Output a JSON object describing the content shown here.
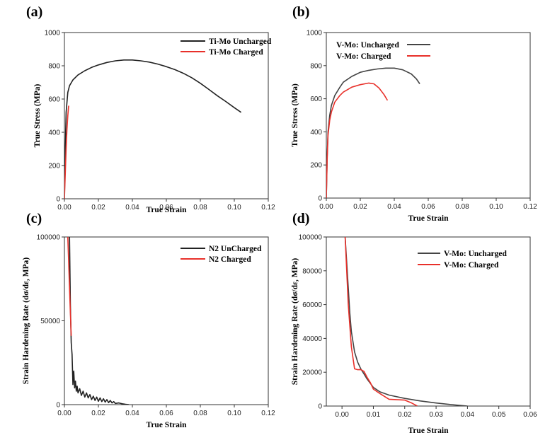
{
  "chart_data": [
    {
      "panel": "(a)",
      "type": "line",
      "xlabel": "True Strain",
      "ylabel": "True Stress (MPa)",
      "xlim": [
        0,
        0.12
      ],
      "ylim": [
        0,
        1000
      ],
      "xticks": [
        "0.00",
        "0.02",
        "0.04",
        "0.06",
        "0.08",
        "0.10",
        "0.12"
      ],
      "yticks": [
        "0",
        "200",
        "400",
        "600",
        "800",
        "1000"
      ],
      "legend_position": "top-right",
      "series": [
        {
          "name": "Ti-Mo Uncharged",
          "color": "#222222",
          "x": [
            0,
            0.0005,
            0.001,
            0.002,
            0.003,
            0.005,
            0.008,
            0.012,
            0.016,
            0.02,
            0.025,
            0.03,
            0.035,
            0.04,
            0.045,
            0.05,
            0.055,
            0.06,
            0.065,
            0.07,
            0.075,
            0.08,
            0.085,
            0.09,
            0.095,
            0.1,
            0.104
          ],
          "y": [
            0,
            300,
            520,
            640,
            680,
            715,
            745,
            770,
            790,
            805,
            820,
            830,
            835,
            835,
            830,
            822,
            810,
            795,
            777,
            755,
            728,
            695,
            658,
            620,
            585,
            548,
            520
          ]
        },
        {
          "name": "Ti-Mo Charged",
          "color": "#e8302a",
          "x": [
            0,
            0.0005,
            0.001,
            0.0015,
            0.002,
            0.0025
          ],
          "y": [
            0,
            150,
            300,
            420,
            500,
            560
          ]
        }
      ]
    },
    {
      "panel": "(b)",
      "type": "line",
      "xlabel": "True Strain",
      "ylabel": "True Stress (MPa)",
      "xlim": [
        0,
        0.12
      ],
      "ylim": [
        0,
        1000
      ],
      "xticks": [
        "0.00",
        "0.02",
        "0.04",
        "0.06",
        "0.08",
        "0.10",
        "0.12"
      ],
      "yticks": [
        "0",
        "200",
        "400",
        "600",
        "800",
        "1000"
      ],
      "legend_position": "top-left",
      "series": [
        {
          "name": "V-Mo: Uncharged",
          "color": "#444444",
          "x": [
            0,
            0.0005,
            0.001,
            0.002,
            0.003,
            0.005,
            0.008,
            0.01,
            0.015,
            0.02,
            0.025,
            0.03,
            0.035,
            0.04,
            0.045,
            0.05,
            0.053,
            0.055
          ],
          "y": [
            0,
            250,
            400,
            500,
            560,
            620,
            670,
            700,
            735,
            760,
            772,
            780,
            785,
            785,
            775,
            750,
            720,
            690
          ]
        },
        {
          "name": "V-Mo: Charged",
          "color": "#e8302a",
          "x": [
            0,
            0.0005,
            0.001,
            0.002,
            0.003,
            0.005,
            0.008,
            0.01,
            0.015,
            0.02,
            0.025,
            0.028,
            0.031,
            0.034,
            0.036
          ],
          "y": [
            0,
            230,
            380,
            470,
            520,
            580,
            620,
            640,
            670,
            685,
            695,
            690,
            665,
            625,
            590
          ]
        }
      ]
    },
    {
      "panel": "(c)",
      "type": "line",
      "xlabel": "True Strain",
      "ylabel": "Strain Hardening Rate (dσ/dε, MPa)",
      "xlim": [
        0,
        0.12
      ],
      "ylim": [
        0,
        100000
      ],
      "xticks": [
        "0.00",
        "0.02",
        "0.04",
        "0.06",
        "0.08",
        "0.10",
        "0.12"
      ],
      "yticks": [
        "0",
        "50000",
        "100000"
      ],
      "legend_position": "top-right",
      "series": [
        {
          "name": "N2 UnCharged",
          "color": "#222222",
          "x": [
            0.003,
            0.0035,
            0.004,
            0.0045,
            0.005,
            0.0055,
            0.006,
            0.0065,
            0.007,
            0.0075,
            0.008,
            0.009,
            0.01,
            0.011,
            0.012,
            0.013,
            0.014,
            0.015,
            0.016,
            0.017,
            0.018,
            0.019,
            0.02,
            0.021,
            0.022,
            0.023,
            0.024,
            0.025,
            0.026,
            0.027,
            0.028,
            0.029,
            0.03,
            0.032,
            0.034,
            0.036,
            0.038
          ],
          "y": [
            100000,
            60000,
            37000,
            30000,
            12000,
            20000,
            10000,
            14000,
            8000,
            11000,
            7000,
            9500,
            5500,
            8000,
            4500,
            7000,
            4000,
            6000,
            3000,
            5000,
            2500,
            4500,
            2000,
            4000,
            1800,
            3500,
            1500,
            3000,
            1200,
            2500,
            1000,
            1800,
            700,
            1000,
            500,
            200,
            0
          ]
        },
        {
          "name": "N2 Charged",
          "color": "#e8302a",
          "x": [
            0.002,
            0.0025,
            0.003,
            0.0035,
            0.004
          ],
          "y": [
            100000,
            85000,
            70000,
            55000,
            41000
          ]
        }
      ]
    },
    {
      "panel": "(d)",
      "type": "line",
      "xlabel": "True Strain",
      "ylabel": "Strain Hardening Rate (dσ/dε, MPa)",
      "xlim": [
        -0.005,
        0.06
      ],
      "ylim": [
        0,
        100000
      ],
      "xticks": [
        "0.00",
        "0.01",
        "0.02",
        "0.03",
        "0.04",
        "0.05",
        "0.06"
      ],
      "yticks": [
        "0",
        "20000",
        "40000",
        "60000",
        "80000",
        "100000"
      ],
      "legend_position": "top-right",
      "series": [
        {
          "name": "V-Mo: Uncharged",
          "color": "#444444",
          "x": [
            0.001,
            0.0015,
            0.002,
            0.0025,
            0.003,
            0.004,
            0.005,
            0.006,
            0.007,
            0.008,
            0.01,
            0.012,
            0.015,
            0.02,
            0.025,
            0.03,
            0.035,
            0.04
          ],
          "y": [
            100000,
            85000,
            70000,
            55000,
            44000,
            32000,
            26000,
            22000,
            19000,
            16000,
            11000,
            8500,
            6500,
            4500,
            3000,
            1800,
            800,
            0
          ]
        },
        {
          "name": "V-Mo: Charged",
          "color": "#e8302a",
          "x": [
            0.001,
            0.0015,
            0.002,
            0.003,
            0.004,
            0.005,
            0.006,
            0.007,
            0.008,
            0.009,
            0.01,
            0.012,
            0.015,
            0.02,
            0.022,
            0.024
          ],
          "y": [
            100000,
            80000,
            60000,
            35000,
            22000,
            21500,
            21500,
            20500,
            17000,
            14000,
            10000,
            7500,
            4000,
            3500,
            2000,
            0
          ]
        }
      ]
    }
  ]
}
